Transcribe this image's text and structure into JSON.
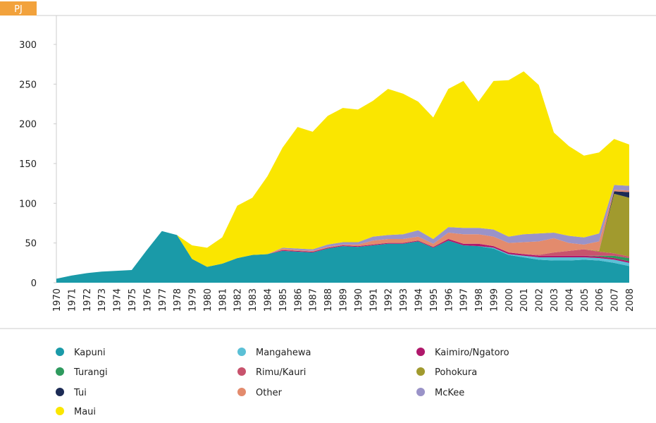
{
  "chart_data": {
    "type": "stacked_area",
    "y_label": "PJ",
    "categories": [
      "1970",
      "1971",
      "1972",
      "1973",
      "1974",
      "1975",
      "1976",
      "1977",
      "1978",
      "1979",
      "1980",
      "1981",
      "1982",
      "1983",
      "1984",
      "1985",
      "1986",
      "1987",
      "1988",
      "1989",
      "1990",
      "1991",
      "1992",
      "1993",
      "1994",
      "1995",
      "1996",
      "1997",
      "1998",
      "1999",
      "2000",
      "2001",
      "2002",
      "2003",
      "2004",
      "2005",
      "2006",
      "2007",
      "2008"
    ],
    "series": [
      {
        "name": "Kapuni",
        "color": "#1a9aa8",
        "values": [
          5,
          9,
          12,
          14,
          15,
          16,
          41,
          65,
          60,
          30,
          20,
          24,
          31,
          35,
          36,
          40,
          39,
          38,
          43,
          46,
          45,
          47,
          49,
          49,
          52,
          44,
          53,
          47,
          46,
          43,
          35,
          32,
          29,
          28,
          28,
          29,
          28,
          25,
          21
        ]
      },
      {
        "name": "Mangahewa",
        "color": "#5bc0d6",
        "values": [
          0,
          0,
          0,
          0,
          0,
          0,
          0,
          0,
          0,
          0,
          0,
          0,
          0,
          0,
          0,
          0,
          0,
          0,
          0,
          0,
          0,
          0,
          0,
          0,
          0,
          0,
          0,
          0,
          0,
          1,
          1,
          2,
          3,
          4,
          4,
          3,
          3,
          4,
          4
        ]
      },
      {
        "name": "Kaimiro/Ngatoro",
        "color": "#b0186b",
        "values": [
          0,
          0,
          0,
          0,
          0,
          0,
          0,
          0,
          0,
          0,
          0,
          0,
          0,
          0,
          0,
          1,
          1,
          1,
          1,
          1,
          1,
          1,
          1,
          1,
          1,
          1,
          2,
          2,
          3,
          2,
          2,
          2,
          2,
          2,
          2,
          2,
          2,
          2,
          2
        ]
      },
      {
        "name": "Turangi",
        "color": "#2e9a5e",
        "values": [
          0,
          0,
          0,
          0,
          0,
          0,
          0,
          0,
          0,
          0,
          0,
          0,
          0,
          0,
          0,
          0,
          0,
          0,
          0,
          0,
          0,
          0,
          0,
          0,
          0,
          0,
          0,
          0,
          0,
          0,
          0,
          0,
          0,
          0,
          0,
          0,
          1,
          3,
          4
        ]
      },
      {
        "name": "Rimu/Kauri",
        "color": "#c8536d",
        "values": [
          0,
          0,
          0,
          0,
          0,
          0,
          0,
          0,
          0,
          0,
          0,
          0,
          0,
          0,
          0,
          0,
          0,
          0,
          0,
          0,
          0,
          0,
          0,
          0,
          0,
          0,
          0,
          0,
          0,
          0,
          0,
          0,
          1,
          4,
          6,
          8,
          5,
          3,
          2
        ]
      },
      {
        "name": "Pohokura",
        "color": "#a19a2e",
        "values": [
          0,
          0,
          0,
          0,
          0,
          0,
          0,
          0,
          0,
          0,
          0,
          0,
          0,
          0,
          0,
          0,
          0,
          0,
          0,
          0,
          0,
          0,
          0,
          0,
          0,
          0,
          0,
          0,
          0,
          0,
          0,
          0,
          0,
          0,
          0,
          0,
          1,
          75,
          74
        ]
      },
      {
        "name": "Tui",
        "color": "#1c2b55",
        "values": [
          0,
          0,
          0,
          0,
          0,
          0,
          0,
          0,
          0,
          0,
          0,
          0,
          0,
          0,
          0,
          0,
          0,
          0,
          0,
          0,
          0,
          0,
          0,
          0,
          0,
          0,
          0,
          0,
          0,
          0,
          0,
          0,
          0,
          0,
          0,
          0,
          0,
          3,
          7
        ]
      },
      {
        "name": "Other",
        "color": "#e38b6d",
        "values": [
          0,
          0,
          0,
          0,
          0,
          0,
          0,
          0,
          0,
          0,
          0,
          0,
          0,
          0,
          0,
          2,
          1,
          1,
          1,
          1,
          2,
          5,
          5,
          5,
          5,
          4,
          8,
          12,
          12,
          12,
          12,
          15,
          17,
          18,
          10,
          6,
          12,
          2,
          2
        ]
      },
      {
        "name": "McKee",
        "color": "#9a93c8",
        "values": [
          0,
          0,
          0,
          0,
          0,
          0,
          0,
          0,
          0,
          0,
          0,
          0,
          0,
          0,
          0,
          1,
          2,
          2,
          3,
          3,
          3,
          5,
          5,
          6,
          8,
          6,
          7,
          8,
          8,
          9,
          8,
          10,
          10,
          7,
          9,
          9,
          10,
          6,
          6
        ]
      },
      {
        "name": "Maui",
        "color": "#fae600",
        "values": [
          0,
          0,
          0,
          0,
          0,
          0,
          0,
          0,
          0,
          17,
          24,
          33,
          66,
          72,
          98,
          126,
          153,
          148,
          162,
          169,
          167,
          171,
          184,
          177,
          162,
          153,
          174,
          185,
          159,
          187,
          197,
          205,
          187,
          126,
          113,
          103,
          102,
          58,
          52
        ]
      }
    ],
    "ylim": [
      0,
      300
    ],
    "yticks": [
      0,
      50,
      100,
      150,
      200,
      250,
      300
    ]
  }
}
